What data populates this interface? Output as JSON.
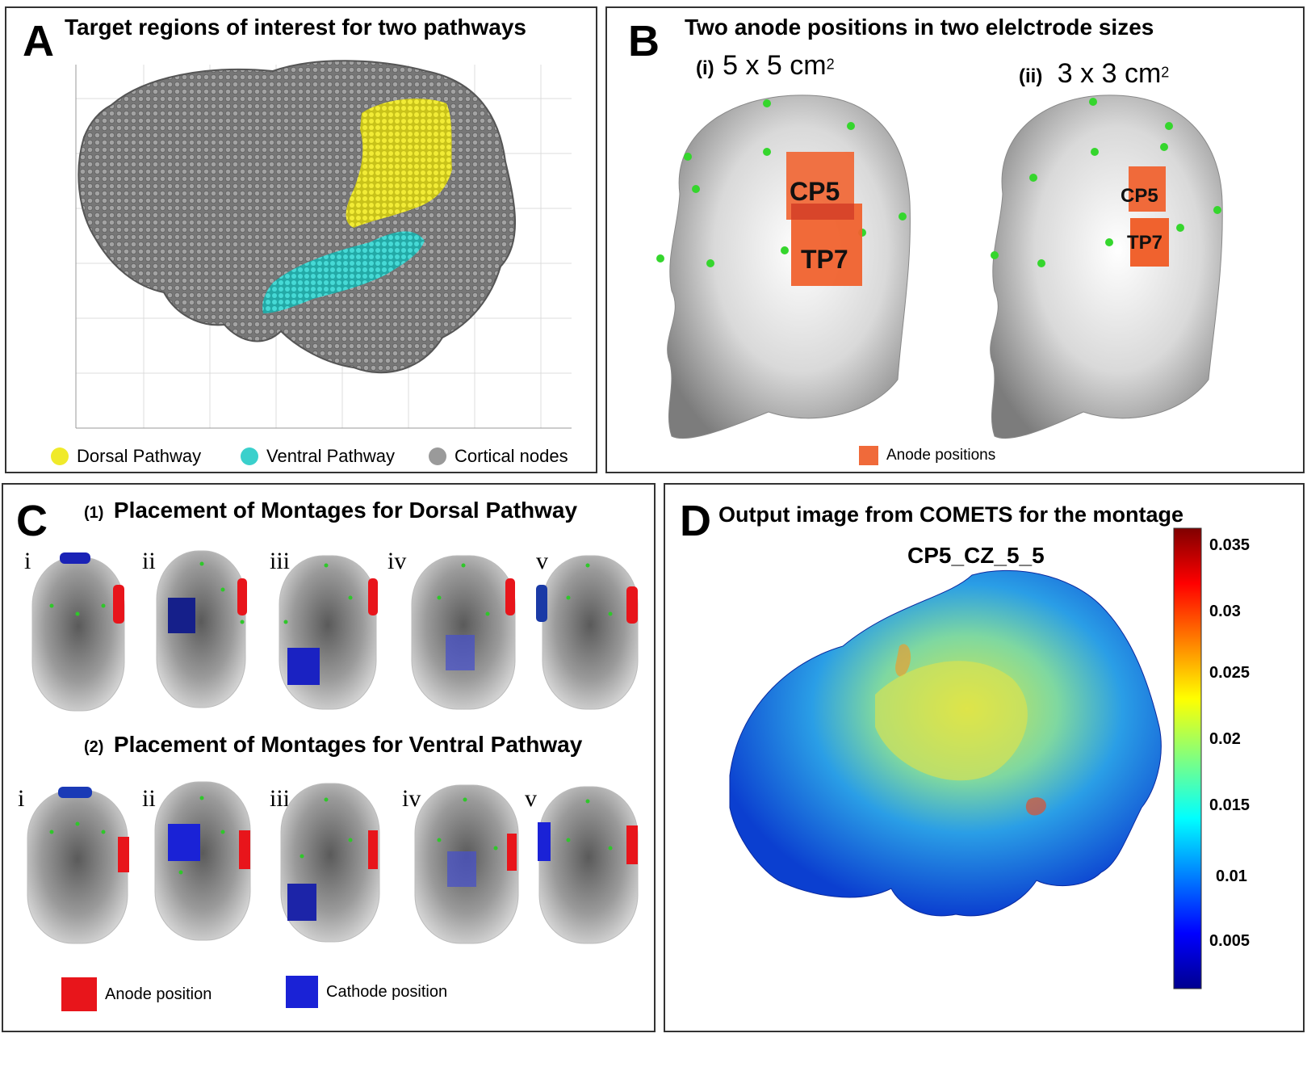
{
  "colors": {
    "dorsal": "#f0ea2a",
    "ventral": "#3ad0cc",
    "cortical": "#8a8a8a",
    "anode_b": "#f06a3a",
    "anode": "#e8151b",
    "cathode": "#1a22d6",
    "brain_gray": "#7d7d7d"
  },
  "panel_a": {
    "label": "A",
    "title": "Target regions of interest for two pathways",
    "legend": [
      {
        "label": "Dorsal Pathway",
        "color_key": "dorsal"
      },
      {
        "label": "Ventral Pathway",
        "color_key": "ventral"
      },
      {
        "label": "Cortical nodes",
        "color_key": "cortical"
      }
    ]
  },
  "panel_b": {
    "label": "B",
    "title": "Two anode positions in two elelctrode sizes",
    "sub_i_num": "(i)",
    "sub_i_size": "5 x 5 cm",
    "sub_ii_num": "(ii)",
    "sub_ii_size": "3 x 3 cm",
    "sup": "2",
    "electrodes": [
      "CP5",
      "TP7"
    ],
    "legend": "Anode positions"
  },
  "panel_c": {
    "label": "C",
    "row1_num": "(1)",
    "row1_title": "Placement of Montages for Dorsal Pathway",
    "row2_num": "(2)",
    "row2_title": "Placement of Montages for Ventral Pathway",
    "romans": [
      "i",
      "ii",
      "iii",
      "iv",
      "v"
    ],
    "row2_romans": [
      "i",
      "ii",
      "iii",
      "iv",
      "v"
    ],
    "legend_anode": "Anode position",
    "legend_cathode": "Cathode position"
  },
  "panel_d": {
    "label": "D",
    "title": "Output image from COMETS for the montage",
    "montage": "CP5_CZ_5_5",
    "colorbar_ticks": [
      "0.035",
      "0.03",
      "0.025",
      "0.02",
      "0.015",
      "0.01",
      "0.005"
    ]
  }
}
